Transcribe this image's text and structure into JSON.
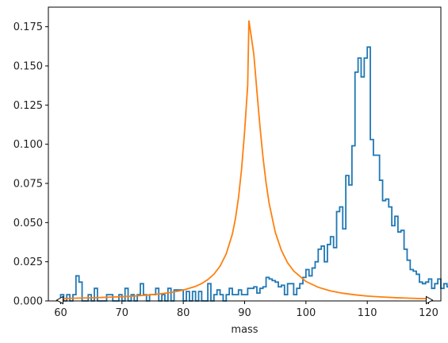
{
  "chart_data": {
    "type": "line",
    "title": "",
    "xlabel": "mass",
    "ylabel": "",
    "xlim": [
      58,
      122
    ],
    "ylim": [
      0,
      0.1875
    ],
    "grid": false,
    "x_ticks": [
      60,
      70,
      80,
      90,
      100,
      110,
      120
    ],
    "x_tick_labels": [
      "60",
      "70",
      "80",
      "90",
      "100",
      "110",
      "120"
    ],
    "y_ticks": [
      0,
      0.025,
      0.05,
      0.075,
      0.1,
      0.125,
      0.15,
      0.175
    ],
    "y_tick_labels": [
      "0.000",
      "0.025",
      "0.050",
      "0.075",
      "0.100",
      "0.125",
      "0.150",
      "0.175"
    ],
    "arrow_markers": [
      60,
      120
    ],
    "colors": {
      "histogram": "#1f77b4",
      "fit": "#ff7f0e",
      "axis": "#000000"
    },
    "series": [
      {
        "type": "step-histogram",
        "bin_start": 60,
        "bin_width": 0.5,
        "values": [
          0.004,
          0,
          0.004,
          0,
          0.004,
          0.016,
          0.012,
          0,
          0,
          0.004,
          0,
          0.008,
          0,
          0,
          0,
          0.004,
          0.004,
          0,
          0,
          0.004,
          0,
          0.008,
          0,
          0.004,
          0,
          0.004,
          0.011,
          0.004,
          0,
          0.004,
          0.004,
          0.008,
          0,
          0.004,
          0,
          0.008,
          0,
          0.007,
          0.007,
          0.007,
          0,
          0.006,
          0,
          0.006,
          0,
          0.006,
          0,
          0,
          0.011,
          0,
          0.004,
          0.007,
          0.004,
          0,
          0.004,
          0.008,
          0.004,
          0.004,
          0.007,
          0.004,
          0.004,
          0.008,
          0.008,
          0.009,
          0.005,
          0.008,
          0.009,
          0.015,
          0.014,
          0.013,
          0.012,
          0.009,
          0.01,
          0.004,
          0.011,
          0.011,
          0.004,
          0.008,
          0.011,
          0.015,
          0.02,
          0.016,
          0.021,
          0.025,
          0.033,
          0.035,
          0.025,
          0.036,
          0.041,
          0.034,
          0.057,
          0.06,
          0.046,
          0.08,
          0.074,
          0.099,
          0.146,
          0.155,
          0.143,
          0.155,
          0.162,
          0.103,
          0.093,
          0.093,
          0.077,
          0.064,
          0.065,
          0.06,
          0.048,
          0.054,
          0.044,
          0.045,
          0.033,
          0.026,
          0.02,
          0.019,
          0.017,
          0.012,
          0.011,
          0.012,
          0.014,
          0.008,
          0.011,
          0.014,
          0.008,
          0.011,
          0.009,
          0.006,
          0.008,
          0.008,
          0.007,
          0.003,
          0.002,
          0.003,
          0.004,
          0.002,
          0.005,
          0.004,
          0.003,
          0.003,
          0.003,
          0.002,
          0.002,
          0.001,
          0.002,
          0.002,
          0.001,
          0.003,
          0.003,
          0.002,
          0.002,
          0.002,
          0.002,
          0,
          0.003,
          0.003,
          0.002,
          0.001,
          0.002,
          0.001,
          0.001,
          0.001,
          0,
          0.001,
          0.001,
          0.002,
          0,
          0.001,
          0.001,
          0.001,
          0.001,
          0.001,
          0.001,
          0.002,
          0.002,
          0.001,
          0.001,
          0.001,
          0.001,
          0.001,
          0.001,
          0.001,
          0,
          0.003,
          0,
          0.001,
          0.002,
          0.001,
          0,
          0.001,
          0.001,
          0,
          0.002,
          0,
          0.001,
          0.001,
          0.001,
          0.001,
          0.001,
          0.001,
          0,
          0,
          0,
          0.001,
          0.001,
          0,
          0,
          0,
          0.001,
          0,
          0.001,
          0,
          0,
          0.002,
          0,
          0,
          0.001,
          0,
          0.001,
          0,
          0,
          0.001,
          0,
          0,
          0,
          0,
          0,
          0,
          0,
          0.001,
          0,
          0,
          0,
          0,
          0,
          0,
          0,
          0,
          0,
          0,
          0,
          0,
          0,
          0,
          0,
          0,
          0,
          0,
          0,
          0
        ]
      },
      {
        "type": "line",
        "model": "lorentzian-with-background",
        "peak_position": 90.7,
        "peak_value": 0.179,
        "x": [
          60,
          62,
          64,
          66,
          68,
          70,
          72,
          74,
          76,
          78,
          80,
          82,
          83,
          84,
          85,
          86,
          87,
          88,
          88.5,
          89,
          89.5,
          90,
          90.5,
          90.7,
          91,
          91.5,
          92,
          92.5,
          93,
          93.5,
          94,
          95,
          96,
          97,
          98,
          100,
          102,
          104,
          106,
          108,
          110,
          112,
          115,
          118,
          120
        ],
        "y": [
          0.0015,
          0.0017,
          0.0019,
          0.0021,
          0.0024,
          0.0027,
          0.0031,
          0.0037,
          0.0044,
          0.0054,
          0.0069,
          0.0093,
          0.0111,
          0.0136,
          0.0171,
          0.0222,
          0.03,
          0.0426,
          0.0524,
          0.0658,
          0.0839,
          0.1082,
          0.1375,
          0.179,
          0.171,
          0.1575,
          0.1341,
          0.1114,
          0.0916,
          0.0754,
          0.0622,
          0.0438,
          0.0322,
          0.0244,
          0.0191,
          0.0124,
          0.0087,
          0.0064,
          0.0049,
          0.0039,
          0.0031,
          0.0026,
          0.002,
          0.0016,
          0.0014
        ]
      }
    ]
  }
}
